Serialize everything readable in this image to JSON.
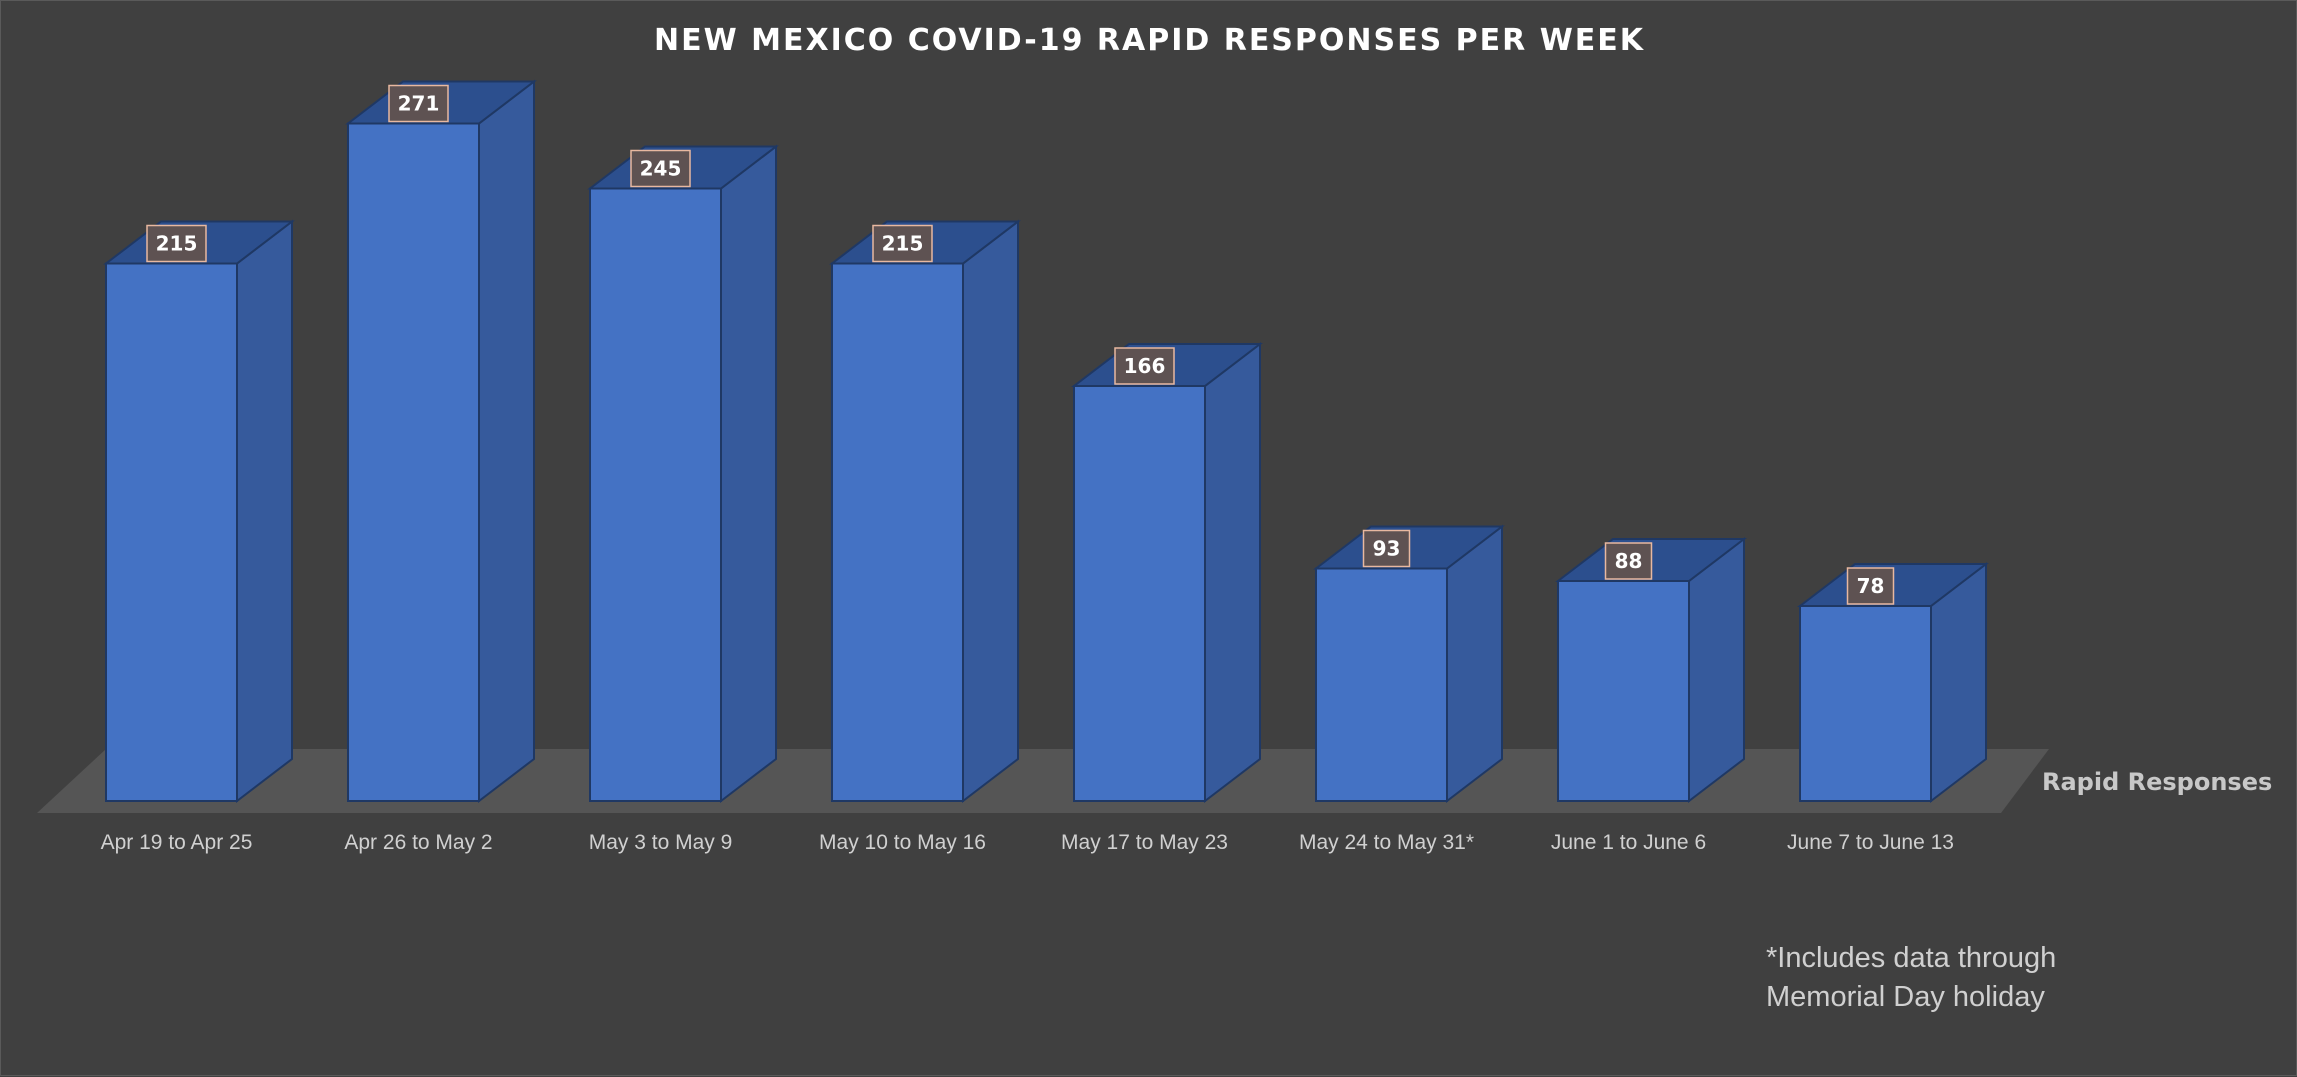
{
  "chart_data": {
    "type": "bar",
    "title": "NEW MEXICO COVID-19 RAPID RESPONSES PER WEEK",
    "categories": [
      "Apr 19 to Apr 25",
      "Apr 26 to May 2",
      "May 3 to May 9",
      "May 10 to May 16",
      "May 17 to May 23",
      "May 24 to May 31*",
      "June 1 to June 6",
      "June 7 to June 13"
    ],
    "series": [
      {
        "name": "Rapid Responses",
        "values": [
          215,
          271,
          245,
          215,
          166,
          93,
          88,
          78
        ]
      }
    ],
    "data_labels": true,
    "grid": false,
    "legend": "right",
    "colors": {
      "background": "#404040",
      "bar_front": "#4472c4",
      "bar_side": "#365a9c",
      "bar_top": "#2c4f8e",
      "bar_edge": "#1f3864",
      "floor": "#555555",
      "label_box": "#5e5252",
      "label_border": "#e8b8a0"
    },
    "footnote": [
      "*Includes data through",
      "Memorial Day holiday"
    ]
  }
}
